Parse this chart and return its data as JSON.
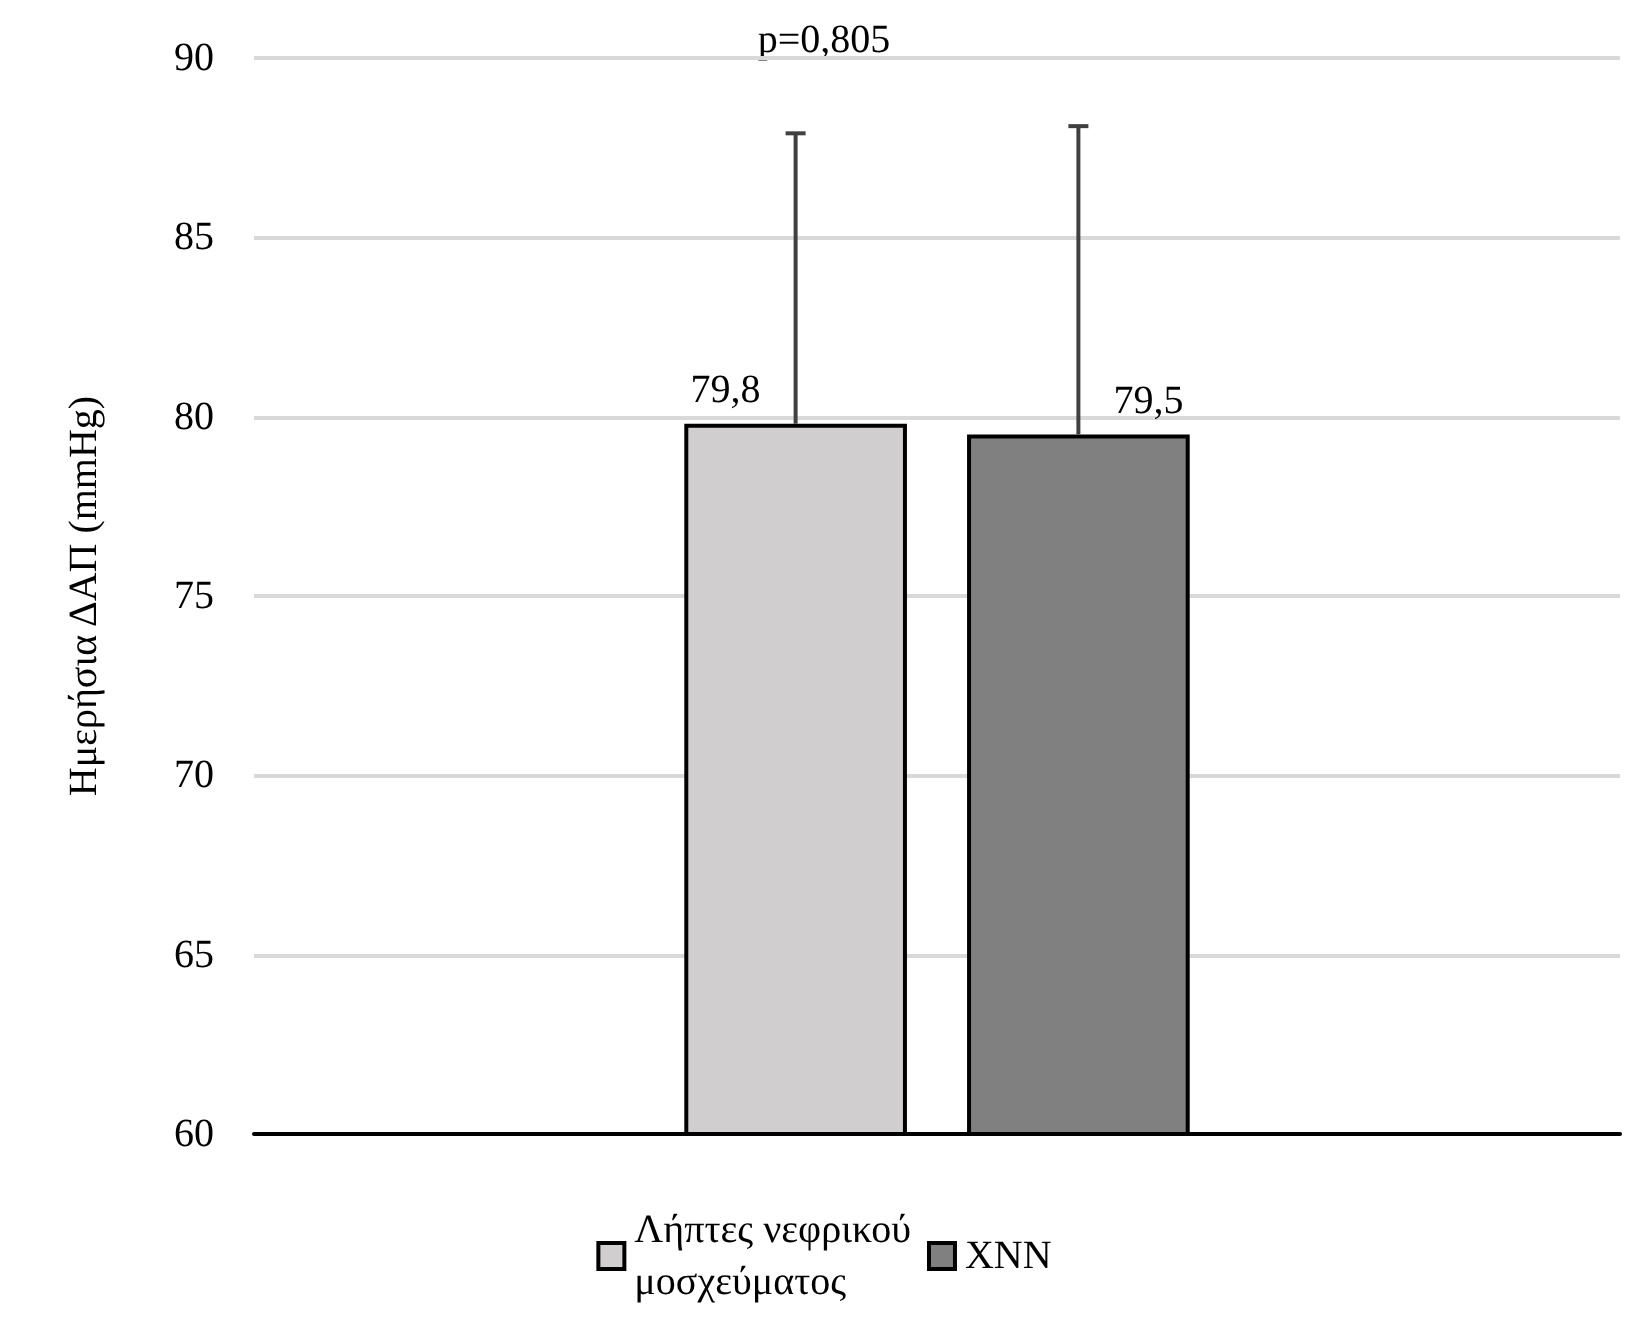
{
  "chart_data": {
    "type": "bar",
    "ylabel": "Ημερήσια ΔΑΠ (mmHg)",
    "categories": [
      null
    ],
    "series": [
      {
        "name": "Λήπτες νεφρικού μοσχεύματος",
        "color": "#d0cece",
        "values": [
          79.8
        ],
        "errors": [
          [
            79.8,
            87.9
          ]
        ],
        "value_labels": [
          "79,8"
        ]
      },
      {
        "name": "ΧΝΝ",
        "color": "#808080",
        "values": [
          79.5
        ],
        "errors": [
          [
            79.5,
            88.1
          ]
        ],
        "value_labels": [
          "79,5"
        ]
      }
    ],
    "ylim": [
      60,
      90
    ],
    "yticks": [
      60,
      65,
      70,
      75,
      80,
      85,
      90
    ],
    "grid": "y",
    "legend": "bottom",
    "annotations": [
      "p=0,805"
    ]
  }
}
